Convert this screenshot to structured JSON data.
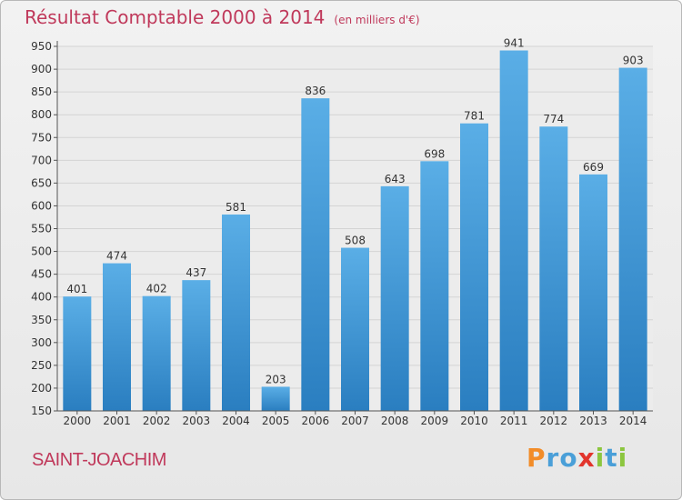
{
  "chart_data": {
    "type": "bar",
    "title": "Résultat Comptable 2000 à 2014",
    "unit_label": "(en milliers d'€)",
    "categories": [
      "2000",
      "2001",
      "2002",
      "2003",
      "2004",
      "2005",
      "2006",
      "2007",
      "2008",
      "2009",
      "2010",
      "2011",
      "2012",
      "2013",
      "2014"
    ],
    "values": [
      401,
      474,
      402,
      437,
      581,
      203,
      836,
      508,
      643,
      698,
      781,
      941,
      774,
      669,
      903
    ],
    "ylim": [
      150,
      950
    ],
    "yticks": [
      150,
      200,
      250,
      300,
      350,
      400,
      450,
      500,
      550,
      600,
      650,
      700,
      750,
      800,
      850,
      900,
      950
    ],
    "grid": true,
    "xlabel": "",
    "ylabel": ""
  },
  "commune": "SAINT-JOACHIM",
  "logo": {
    "letters": [
      "P",
      "r",
      "o",
      "x",
      "i",
      "t",
      "i"
    ]
  },
  "colors": {
    "bar_top": "#5aaee6",
    "bar_bottom": "#2a7ec0",
    "title": "#c0395b",
    "grid": "#d4d4d4"
  }
}
